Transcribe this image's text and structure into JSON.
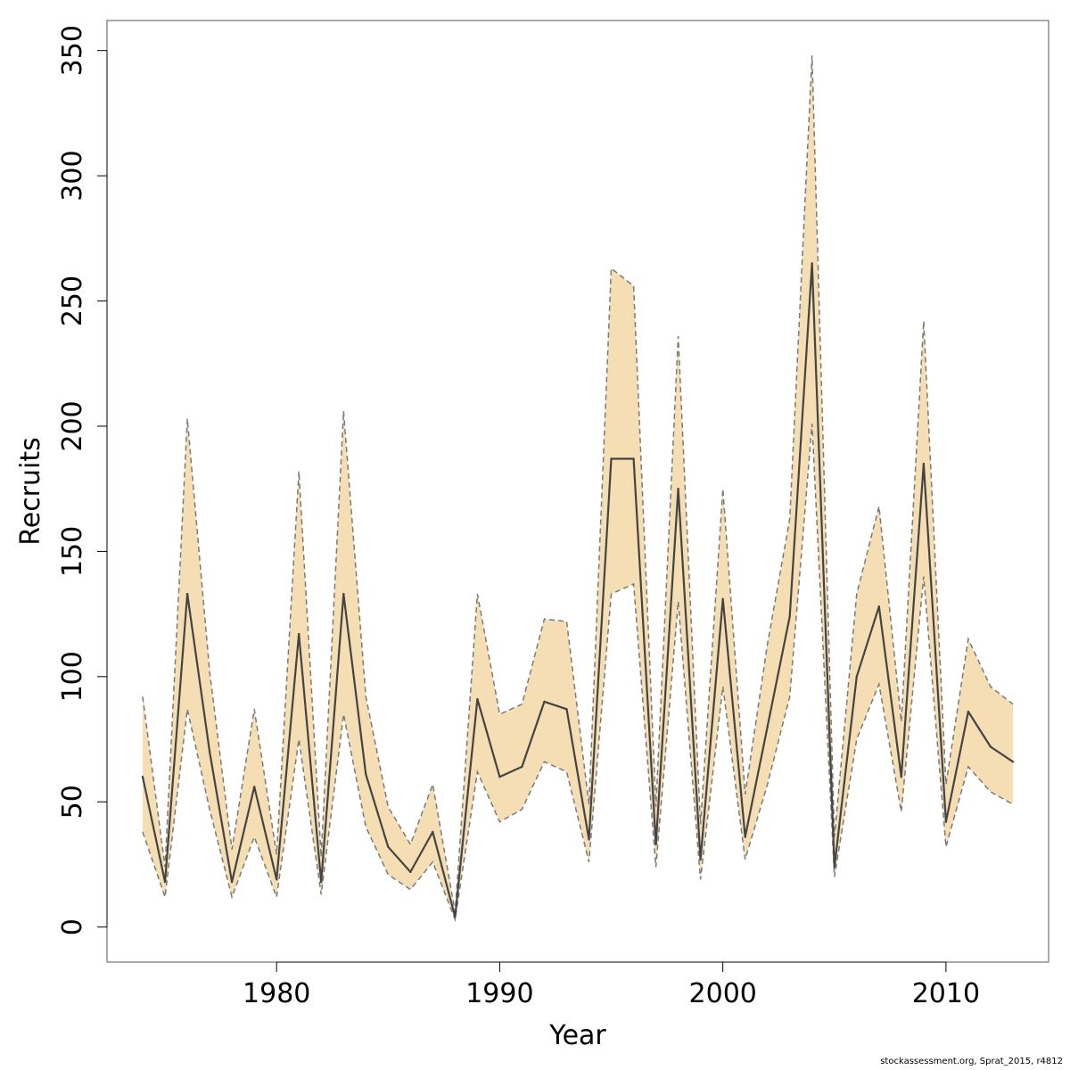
{
  "chart_data": {
    "type": "line",
    "title": "",
    "xlabel": "Year",
    "ylabel": "Recruits",
    "xlim": [
      1972.4,
      2014.6
    ],
    "ylim": [
      -14,
      362
    ],
    "x_ticks": [
      1980,
      1990,
      2000,
      2010
    ],
    "y_ticks": [
      0,
      50,
      100,
      150,
      200,
      250,
      300,
      350
    ],
    "grid": false,
    "legend": "none",
    "colors": {
      "band": "#f5deb3",
      "estimate": "#444444",
      "bounds": "#7a7a7a",
      "frame": "#555555"
    },
    "x": [
      1974,
      1975,
      1976,
      1977,
      1978,
      1979,
      1980,
      1981,
      1982,
      1983,
      1984,
      1985,
      1986,
      1987,
      1988,
      1989,
      1990,
      1991,
      1992,
      1993,
      1994,
      1995,
      1996,
      1997,
      1998,
      1999,
      2000,
      2001,
      2002,
      2003,
      2004,
      2005,
      2006,
      2007,
      2008,
      2009,
      2010,
      2011,
      2012,
      2013
    ],
    "series": [
      {
        "role": "estimate",
        "values": [
          60,
          18,
          133,
          70,
          18,
          56,
          19,
          117,
          18,
          133,
          61,
          32,
          22,
          38,
          4,
          91,
          60,
          64,
          90,
          87,
          35,
          187,
          187,
          33,
          175,
          27,
          131,
          36,
          80,
          124,
          265,
          24,
          100,
          128,
          60,
          185,
          42,
          86,
          72,
          66
        ]
      },
      {
        "role": "upper",
        "values": [
          92,
          24,
          203,
          102,
          31,
          87,
          29,
          182,
          28,
          206,
          92,
          48,
          33,
          57,
          6,
          133,
          85,
          89,
          123,
          122,
          49,
          263,
          256,
          48,
          236,
          41,
          175,
          53,
          113,
          163,
          348,
          36,
          133,
          168,
          82,
          242,
          57,
          115,
          96,
          89
        ]
      },
      {
        "role": "lower",
        "values": [
          38,
          12,
          87,
          47,
          12,
          36,
          12,
          75,
          13,
          85,
          40,
          21,
          15,
          26,
          3,
          62,
          42,
          47,
          66,
          62,
          26,
          133,
          137,
          24,
          130,
          19,
          96,
          27,
          57,
          92,
          201,
          20,
          75,
          97,
          46,
          140,
          32,
          64,
          54,
          49
        ]
      }
    ]
  },
  "footer": {
    "credit": "stockassessment.org, Sprat_2015, r4812"
  }
}
